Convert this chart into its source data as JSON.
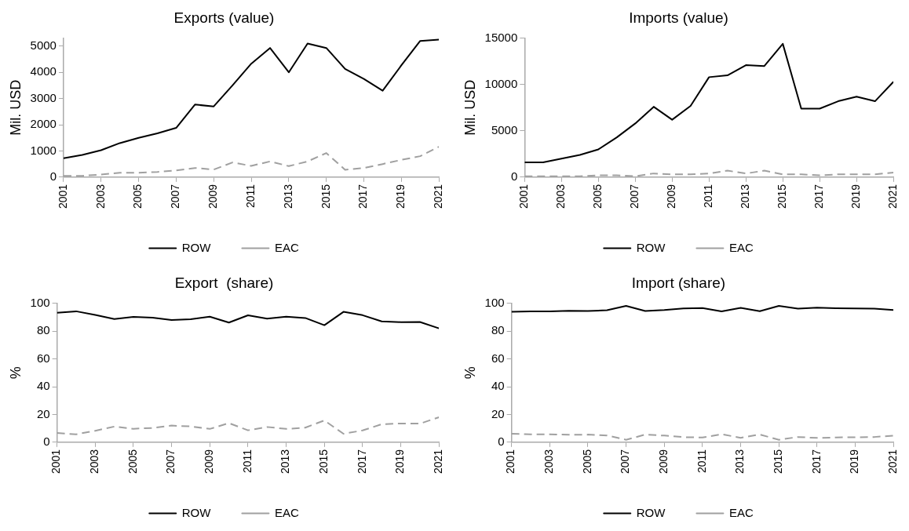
{
  "chart_data": [
    {
      "type": "line",
      "title": "Exports (value)",
      "ylabel": "Mil. USD",
      "x": [
        2001,
        2002,
        2003,
        2004,
        2005,
        2006,
        2007,
        2008,
        2009,
        2010,
        2011,
        2012,
        2013,
        2014,
        2015,
        2016,
        2017,
        2018,
        2019,
        2020,
        2021
      ],
      "xlim": [
        2001,
        2021
      ],
      "xticks": [
        2001,
        2003,
        2005,
        2007,
        2009,
        2011,
        2013,
        2015,
        2017,
        2019,
        2021
      ],
      "ylim": [
        0,
        5300
      ],
      "yticks": [
        0,
        1000,
        2000,
        3000,
        4000,
        5000
      ],
      "grid": false,
      "legend": "bottom",
      "marker": "none",
      "series": [
        {
          "name": "ROW",
          "color": "#000000",
          "line_style": "solid",
          "values": [
            720,
            850,
            1030,
            1300,
            1500,
            1670,
            1880,
            2770,
            2700,
            3500,
            4330,
            4930,
            4000,
            5100,
            4930,
            4130,
            3750,
            3300,
            4270,
            5200,
            5250
          ]
        },
        {
          "name": "EAC",
          "color": "#a0a0a0",
          "line_style": "dashed",
          "values": [
            50,
            50,
            100,
            170,
            170,
            200,
            260,
            350,
            290,
            560,
            430,
            600,
            420,
            600,
            920,
            280,
            350,
            500,
            660,
            800,
            1160
          ]
        }
      ]
    },
    {
      "type": "line",
      "title": "Imports (value)",
      "ylabel": "Mil. USD",
      "x": [
        2001,
        2002,
        2003,
        2004,
        2005,
        2006,
        2007,
        2008,
        2009,
        2010,
        2011,
        2012,
        2013,
        2014,
        2015,
        2016,
        2017,
        2018,
        2019,
        2020,
        2021
      ],
      "xlim": [
        2001,
        2021
      ],
      "xticks": [
        2001,
        2003,
        2005,
        2007,
        2009,
        2011,
        2013,
        2015,
        2017,
        2019,
        2021
      ],
      "ylim": [
        0,
        15000
      ],
      "yticks": [
        0,
        5000,
        10000,
        15000
      ],
      "grid": false,
      "legend": "bottom",
      "marker": "none",
      "series": [
        {
          "name": "ROW",
          "color": "#000000",
          "line_style": "solid",
          "values": [
            1600,
            1600,
            2000,
            2400,
            3000,
            4300,
            5800,
            7600,
            6200,
            7700,
            10800,
            11000,
            12100,
            12000,
            14400,
            7400,
            7400,
            8200,
            8700,
            8200,
            10300
          ]
        },
        {
          "name": "EAC",
          "color": "#a0a0a0",
          "line_style": "dashed",
          "values": [
            100,
            100,
            100,
            100,
            200,
            200,
            100,
            400,
            300,
            300,
            400,
            700,
            400,
            700,
            300,
            300,
            200,
            300,
            300,
            300,
            500
          ]
        }
      ]
    },
    {
      "type": "line",
      "title": "Export  (share)",
      "ylabel": "%",
      "x": [
        2001,
        2002,
        2003,
        2004,
        2005,
        2006,
        2007,
        2008,
        2009,
        2010,
        2011,
        2012,
        2013,
        2014,
        2015,
        2016,
        2017,
        2018,
        2019,
        2020,
        2021
      ],
      "xlim": [
        2001,
        2021
      ],
      "xticks": [
        2001,
        2003,
        2005,
        2007,
        2009,
        2011,
        2013,
        2015,
        2017,
        2019,
        2021
      ],
      "ylim": [
        0,
        100
      ],
      "yticks": [
        0,
        20,
        40,
        60,
        80,
        100
      ],
      "grid": false,
      "legend": "bottom",
      "marker": "none",
      "series": [
        {
          "name": "ROW",
          "color": "#000000",
          "line_style": "solid",
          "values": [
            93.3,
            94.3,
            91.7,
            88.7,
            90.3,
            89.7,
            88,
            88.6,
            90.4,
            86.2,
            91.4,
            89,
            90.4,
            89.5,
            84.3,
            93.9,
            91.5,
            87,
            86.5,
            86.6,
            82
          ]
        },
        {
          "name": "EAC",
          "color": "#a0a0a0",
          "line_style": "dashed",
          "values": [
            6.7,
            5.7,
            8.3,
            11.3,
            9.7,
            10.3,
            12,
            11.4,
            9.6,
            13.8,
            8.6,
            11,
            9.6,
            10.5,
            15.7,
            6.1,
            8.5,
            13,
            13.5,
            13.4,
            18
          ]
        }
      ]
    },
    {
      "type": "line",
      "title": "Import (share)",
      "ylabel": "%",
      "x": [
        2001,
        2002,
        2003,
        2004,
        2005,
        2006,
        2007,
        2008,
        2009,
        2010,
        2011,
        2012,
        2013,
        2014,
        2015,
        2016,
        2017,
        2018,
        2019,
        2020,
        2021
      ],
      "xlim": [
        2001,
        2021
      ],
      "xticks": [
        2001,
        2003,
        2005,
        2007,
        2009,
        2011,
        2013,
        2015,
        2017,
        2019,
        2021
      ],
      "ylim": [
        0,
        100
      ],
      "yticks": [
        0,
        20,
        40,
        60,
        80,
        100
      ],
      "grid": false,
      "legend": "bottom",
      "marker": "none",
      "series": [
        {
          "name": "ROW",
          "color": "#000000",
          "line_style": "solid",
          "values": [
            93.9,
            94.3,
            94.3,
            94.6,
            94.5,
            95.1,
            98.2,
            94.5,
            95.2,
            96.3,
            96.6,
            94.2,
            96.8,
            94.4,
            98.2,
            96.2,
            96.9,
            96.5,
            96.4,
            96.2,
            95.2
          ]
        },
        {
          "name": "EAC",
          "color": "#a0a0a0",
          "line_style": "dashed",
          "values": [
            6.1,
            5.7,
            5.7,
            5.4,
            5.5,
            4.9,
            1.8,
            5.5,
            4.8,
            3.7,
            3.4,
            5.8,
            3.2,
            5.6,
            1.8,
            3.8,
            3.1,
            3.5,
            3.6,
            3.8,
            4.8
          ]
        }
      ]
    }
  ]
}
